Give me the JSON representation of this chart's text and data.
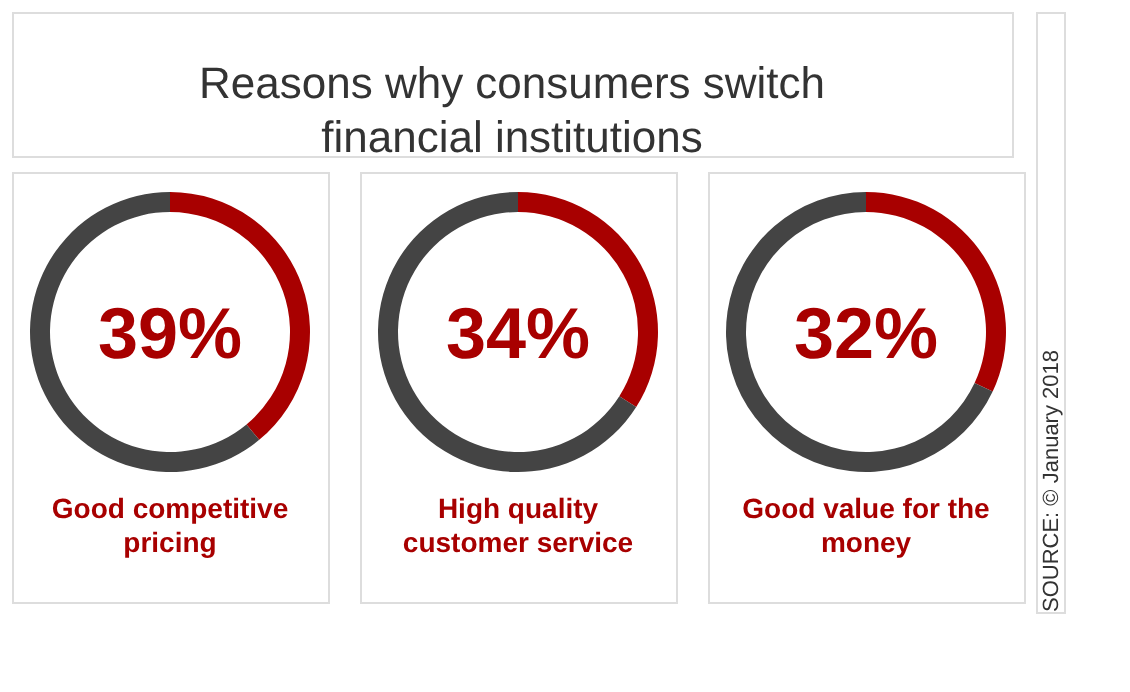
{
  "chart_data": [
    {
      "type": "donut",
      "title": "Reasons why consumers switch financial institutions",
      "subtitle": "Good competitive pricing",
      "annotations": [
        "39%"
      ],
      "categories": [
        null,
        null
      ],
      "values": [
        39,
        61
      ],
      "colors": [
        "#a80000",
        "#444444"
      ]
    },
    {
      "type": "donut",
      "subtitle": "High quality customer service",
      "annotations": [
        "34%"
      ],
      "categories": [
        null,
        null
      ],
      "values": [
        34,
        66
      ],
      "colors": [
        "#a80000",
        "#444444"
      ]
    },
    {
      "type": "donut",
      "subtitle": "Good value for the money",
      "annotations": [
        "32%"
      ],
      "categories": [
        null,
        null
      ],
      "values": [
        32,
        68
      ],
      "colors": [
        "#a80000",
        "#444444"
      ]
    },
    {
      "type": "other",
      "annotations": [
        "SOURCE: © January 2018"
      ]
    }
  ]
}
